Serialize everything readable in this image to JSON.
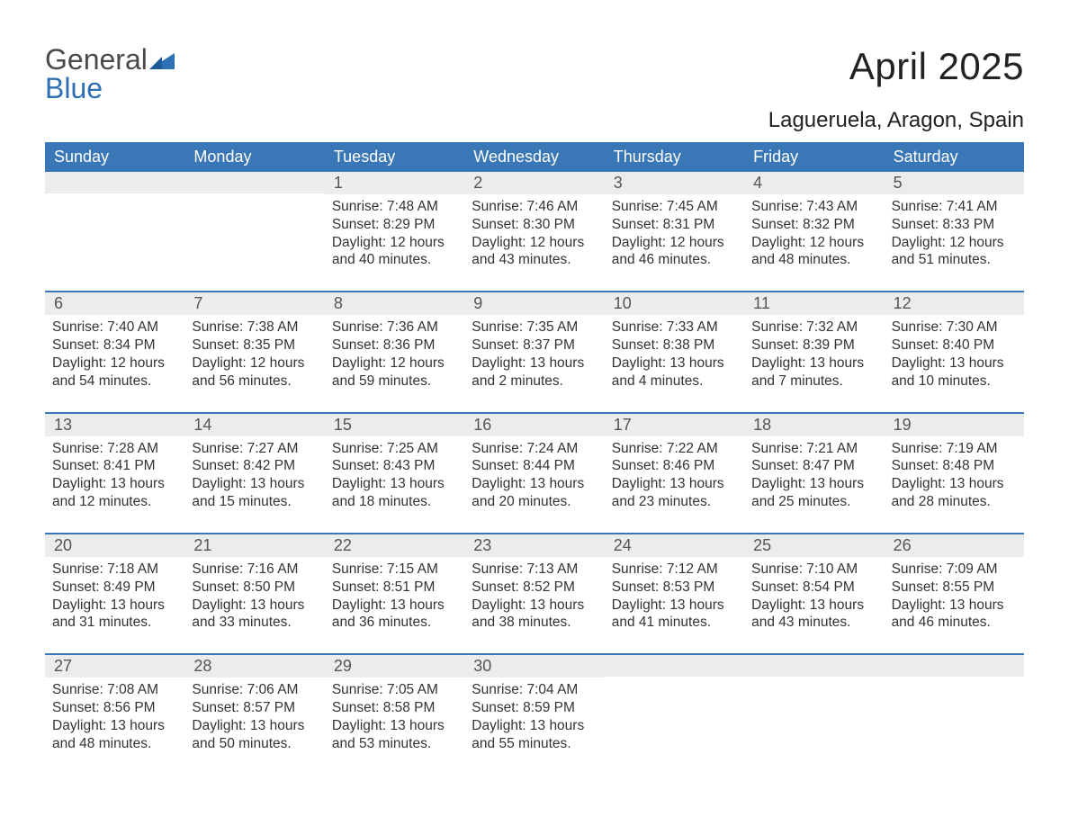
{
  "logo": {
    "general": "General",
    "blue": "Blue"
  },
  "title": "April 2025",
  "location": "Lagueruela, Aragon, Spain",
  "colors": {
    "header_bg": "#3a77b7",
    "header_text": "#ffffff",
    "daynum_bg": "#ececec",
    "text": "#333333",
    "rule": "#3a77b7",
    "logo_gray": "#4a4a4a",
    "logo_blue": "#2f6fb3"
  },
  "weekdays": [
    "Sunday",
    "Monday",
    "Tuesday",
    "Wednesday",
    "Thursday",
    "Friday",
    "Saturday"
  ],
  "weeks": [
    [
      null,
      null,
      {
        "n": "1",
        "sunrise": "Sunrise: 7:48 AM",
        "sunset": "Sunset: 8:29 PM",
        "day1": "Daylight: 12 hours",
        "day2": "and 40 minutes."
      },
      {
        "n": "2",
        "sunrise": "Sunrise: 7:46 AM",
        "sunset": "Sunset: 8:30 PM",
        "day1": "Daylight: 12 hours",
        "day2": "and 43 minutes."
      },
      {
        "n": "3",
        "sunrise": "Sunrise: 7:45 AM",
        "sunset": "Sunset: 8:31 PM",
        "day1": "Daylight: 12 hours",
        "day2": "and 46 minutes."
      },
      {
        "n": "4",
        "sunrise": "Sunrise: 7:43 AM",
        "sunset": "Sunset: 8:32 PM",
        "day1": "Daylight: 12 hours",
        "day2": "and 48 minutes."
      },
      {
        "n": "5",
        "sunrise": "Sunrise: 7:41 AM",
        "sunset": "Sunset: 8:33 PM",
        "day1": "Daylight: 12 hours",
        "day2": "and 51 minutes."
      }
    ],
    [
      {
        "n": "6",
        "sunrise": "Sunrise: 7:40 AM",
        "sunset": "Sunset: 8:34 PM",
        "day1": "Daylight: 12 hours",
        "day2": "and 54 minutes."
      },
      {
        "n": "7",
        "sunrise": "Sunrise: 7:38 AM",
        "sunset": "Sunset: 8:35 PM",
        "day1": "Daylight: 12 hours",
        "day2": "and 56 minutes."
      },
      {
        "n": "8",
        "sunrise": "Sunrise: 7:36 AM",
        "sunset": "Sunset: 8:36 PM",
        "day1": "Daylight: 12 hours",
        "day2": "and 59 minutes."
      },
      {
        "n": "9",
        "sunrise": "Sunrise: 7:35 AM",
        "sunset": "Sunset: 8:37 PM",
        "day1": "Daylight: 13 hours",
        "day2": "and 2 minutes."
      },
      {
        "n": "10",
        "sunrise": "Sunrise: 7:33 AM",
        "sunset": "Sunset: 8:38 PM",
        "day1": "Daylight: 13 hours",
        "day2": "and 4 minutes."
      },
      {
        "n": "11",
        "sunrise": "Sunrise: 7:32 AM",
        "sunset": "Sunset: 8:39 PM",
        "day1": "Daylight: 13 hours",
        "day2": "and 7 minutes."
      },
      {
        "n": "12",
        "sunrise": "Sunrise: 7:30 AM",
        "sunset": "Sunset: 8:40 PM",
        "day1": "Daylight: 13 hours",
        "day2": "and 10 minutes."
      }
    ],
    [
      {
        "n": "13",
        "sunrise": "Sunrise: 7:28 AM",
        "sunset": "Sunset: 8:41 PM",
        "day1": "Daylight: 13 hours",
        "day2": "and 12 minutes."
      },
      {
        "n": "14",
        "sunrise": "Sunrise: 7:27 AM",
        "sunset": "Sunset: 8:42 PM",
        "day1": "Daylight: 13 hours",
        "day2": "and 15 minutes."
      },
      {
        "n": "15",
        "sunrise": "Sunrise: 7:25 AM",
        "sunset": "Sunset: 8:43 PM",
        "day1": "Daylight: 13 hours",
        "day2": "and 18 minutes."
      },
      {
        "n": "16",
        "sunrise": "Sunrise: 7:24 AM",
        "sunset": "Sunset: 8:44 PM",
        "day1": "Daylight: 13 hours",
        "day2": "and 20 minutes."
      },
      {
        "n": "17",
        "sunrise": "Sunrise: 7:22 AM",
        "sunset": "Sunset: 8:46 PM",
        "day1": "Daylight: 13 hours",
        "day2": "and 23 minutes."
      },
      {
        "n": "18",
        "sunrise": "Sunrise: 7:21 AM",
        "sunset": "Sunset: 8:47 PM",
        "day1": "Daylight: 13 hours",
        "day2": "and 25 minutes."
      },
      {
        "n": "19",
        "sunrise": "Sunrise: 7:19 AM",
        "sunset": "Sunset: 8:48 PM",
        "day1": "Daylight: 13 hours",
        "day2": "and 28 minutes."
      }
    ],
    [
      {
        "n": "20",
        "sunrise": "Sunrise: 7:18 AM",
        "sunset": "Sunset: 8:49 PM",
        "day1": "Daylight: 13 hours",
        "day2": "and 31 minutes."
      },
      {
        "n": "21",
        "sunrise": "Sunrise: 7:16 AM",
        "sunset": "Sunset: 8:50 PM",
        "day1": "Daylight: 13 hours",
        "day2": "and 33 minutes."
      },
      {
        "n": "22",
        "sunrise": "Sunrise: 7:15 AM",
        "sunset": "Sunset: 8:51 PM",
        "day1": "Daylight: 13 hours",
        "day2": "and 36 minutes."
      },
      {
        "n": "23",
        "sunrise": "Sunrise: 7:13 AM",
        "sunset": "Sunset: 8:52 PM",
        "day1": "Daylight: 13 hours",
        "day2": "and 38 minutes."
      },
      {
        "n": "24",
        "sunrise": "Sunrise: 7:12 AM",
        "sunset": "Sunset: 8:53 PM",
        "day1": "Daylight: 13 hours",
        "day2": "and 41 minutes."
      },
      {
        "n": "25",
        "sunrise": "Sunrise: 7:10 AM",
        "sunset": "Sunset: 8:54 PM",
        "day1": "Daylight: 13 hours",
        "day2": "and 43 minutes."
      },
      {
        "n": "26",
        "sunrise": "Sunrise: 7:09 AM",
        "sunset": "Sunset: 8:55 PM",
        "day1": "Daylight: 13 hours",
        "day2": "and 46 minutes."
      }
    ],
    [
      {
        "n": "27",
        "sunrise": "Sunrise: 7:08 AM",
        "sunset": "Sunset: 8:56 PM",
        "day1": "Daylight: 13 hours",
        "day2": "and 48 minutes."
      },
      {
        "n": "28",
        "sunrise": "Sunrise: 7:06 AM",
        "sunset": "Sunset: 8:57 PM",
        "day1": "Daylight: 13 hours",
        "day2": "and 50 minutes."
      },
      {
        "n": "29",
        "sunrise": "Sunrise: 7:05 AM",
        "sunset": "Sunset: 8:58 PM",
        "day1": "Daylight: 13 hours",
        "day2": "and 53 minutes."
      },
      {
        "n": "30",
        "sunrise": "Sunrise: 7:04 AM",
        "sunset": "Sunset: 8:59 PM",
        "day1": "Daylight: 13 hours",
        "day2": "and 55 minutes."
      },
      null,
      null,
      null
    ]
  ]
}
